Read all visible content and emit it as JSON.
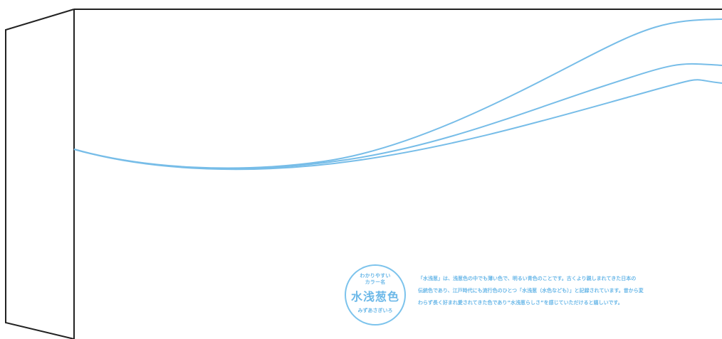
{
  "design": {
    "line_color": "#000000",
    "accent_color": "#78c2ea",
    "stroke_color": "#77bde8"
  },
  "seal": {
    "top_text": [
      "わかりやすい",
      "カラー名"
    ],
    "main_text": "水浅葱色",
    "bottom_text": "みずあさぎいろ"
  },
  "description": {
    "lines": [
      "「水浅葱」は、浅葱色の中でも薄い色で、明るい青色のことです。古くより親しまれてきた日本の",
      "伝統色であり、江戸時代にも流行色のひとつ「水浅葱（水色なども）」と記録されています。昔から変",
      "わらず長く好まれ愛されてきた色であり”水浅葱らしさ”を感じていただけると嬉しいです。"
    ]
  }
}
